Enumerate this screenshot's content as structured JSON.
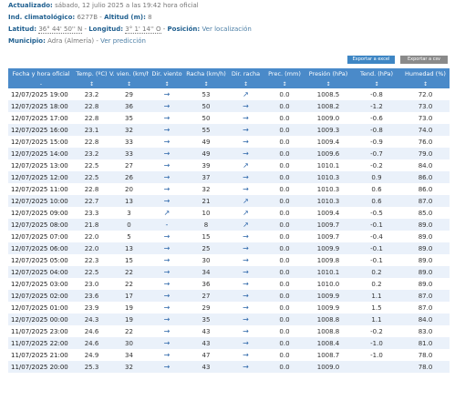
{
  "header": {
    "updated_label": "Actualizado:",
    "updated_value": "sábado, 12 julio 2025 a las 19:42 hora oficial",
    "station_label": "Ind. climatológico:",
    "station_value": "6277B",
    "altitude_label": "Altitud (m):",
    "altitude_value": "8",
    "lat_label": "Latitud:",
    "lat_value": "36° 44' 50'' N",
    "lon_label": "Longitud:",
    "lon_value": "3° 1' 14'' O",
    "position_label": "Posición:",
    "position_link": "Ver localización",
    "municipality_label": "Municipio:",
    "municipality_value": "Adra (Almería)",
    "prediction_link": "Ver predicción"
  },
  "buttons": {
    "excel": "Exportar a excel",
    "csv": "Exportar a csv"
  },
  "table": {
    "headers": [
      "Fecha y hora oficial",
      "Temp. (ºC)",
      "V. vien. (km/h)",
      "Dir. viento",
      "Racha (km/h)",
      "Dir. racha",
      "Prec. (mm)",
      "Presión (hPa)",
      "Tend. (hPa)",
      "Humedad (%)"
    ],
    "units": [
      "-",
      "↕",
      "↕",
      "↕",
      "↕",
      "↕",
      "↕",
      "↕",
      "↕",
      "↕"
    ],
    "rows": [
      {
        "date": "12/07/2025 19:00",
        "temp": "23.2",
        "wind": "29",
        "dir": "→",
        "gust": "53",
        "gdir": "↗",
        "prec": "0.0",
        "pres": "1008.5",
        "tend": "-0.8",
        "hum": "72.0"
      },
      {
        "date": "12/07/2025 18:00",
        "temp": "22.8",
        "wind": "36",
        "dir": "→",
        "gust": "50",
        "gdir": "→",
        "prec": "0.0",
        "pres": "1008.2",
        "tend": "-1.2",
        "hum": "73.0"
      },
      {
        "date": "12/07/2025 17:00",
        "temp": "22.8",
        "wind": "35",
        "dir": "→",
        "gust": "50",
        "gdir": "→",
        "prec": "0.0",
        "pres": "1009.0",
        "tend": "-0.6",
        "hum": "73.0"
      },
      {
        "date": "12/07/2025 16:00",
        "temp": "23.1",
        "wind": "32",
        "dir": "→",
        "gust": "55",
        "gdir": "→",
        "prec": "0.0",
        "pres": "1009.3",
        "tend": "-0.8",
        "hum": "74.0"
      },
      {
        "date": "12/07/2025 15:00",
        "temp": "22.8",
        "wind": "33",
        "dir": "→",
        "gust": "49",
        "gdir": "→",
        "prec": "0.0",
        "pres": "1009.4",
        "tend": "-0.9",
        "hum": "76.0"
      },
      {
        "date": "12/07/2025 14:00",
        "temp": "23.2",
        "wind": "33",
        "dir": "→",
        "gust": "49",
        "gdir": "→",
        "prec": "0.0",
        "pres": "1009.6",
        "tend": "-0.7",
        "hum": "79.0"
      },
      {
        "date": "12/07/2025 13:00",
        "temp": "22.5",
        "wind": "27",
        "dir": "→",
        "gust": "39",
        "gdir": "↗",
        "prec": "0.0",
        "pres": "1010.1",
        "tend": "-0.2",
        "hum": "84.0"
      },
      {
        "date": "12/07/2025 12:00",
        "temp": "22.5",
        "wind": "26",
        "dir": "→",
        "gust": "37",
        "gdir": "→",
        "prec": "0.0",
        "pres": "1010.3",
        "tend": "0.9",
        "hum": "86.0"
      },
      {
        "date": "12/07/2025 11:00",
        "temp": "22.8",
        "wind": "20",
        "dir": "→",
        "gust": "32",
        "gdir": "→",
        "prec": "0.0",
        "pres": "1010.3",
        "tend": "0.6",
        "hum": "86.0"
      },
      {
        "date": "12/07/2025 10:00",
        "temp": "22.7",
        "wind": "13",
        "dir": "→",
        "gust": "21",
        "gdir": "↗",
        "prec": "0.0",
        "pres": "1010.3",
        "tend": "0.6",
        "hum": "87.0"
      },
      {
        "date": "12/07/2025 09:00",
        "temp": "23.3",
        "wind": "3",
        "dir": "↗",
        "gust": "10",
        "gdir": "↗",
        "prec": "0.0",
        "pres": "1009.4",
        "tend": "-0.5",
        "hum": "85.0"
      },
      {
        "date": "12/07/2025 08:00",
        "temp": "21.8",
        "wind": "0",
        "dir": "-",
        "gust": "8",
        "gdir": "↗",
        "prec": "0.0",
        "pres": "1009.7",
        "tend": "-0.1",
        "hum": "89.0"
      },
      {
        "date": "12/07/2025 07:00",
        "temp": "22.0",
        "wind": "5",
        "dir": "→",
        "gust": "15",
        "gdir": "→",
        "prec": "0.0",
        "pres": "1009.7",
        "tend": "-0.4",
        "hum": "89.0"
      },
      {
        "date": "12/07/2025 06:00",
        "temp": "22.0",
        "wind": "13",
        "dir": "→",
        "gust": "25",
        "gdir": "→",
        "prec": "0.0",
        "pres": "1009.9",
        "tend": "-0.1",
        "hum": "89.0"
      },
      {
        "date": "12/07/2025 05:00",
        "temp": "22.3",
        "wind": "15",
        "dir": "→",
        "gust": "30",
        "gdir": "→",
        "prec": "0.0",
        "pres": "1009.8",
        "tend": "-0.1",
        "hum": "89.0"
      },
      {
        "date": "12/07/2025 04:00",
        "temp": "22.5",
        "wind": "22",
        "dir": "→",
        "gust": "34",
        "gdir": "→",
        "prec": "0.0",
        "pres": "1010.1",
        "tend": "0.2",
        "hum": "89.0"
      },
      {
        "date": "12/07/2025 03:00",
        "temp": "23.0",
        "wind": "22",
        "dir": "→",
        "gust": "36",
        "gdir": "→",
        "prec": "0.0",
        "pres": "1010.0",
        "tend": "0.2",
        "hum": "89.0"
      },
      {
        "date": "12/07/2025 02:00",
        "temp": "23.6",
        "wind": "17",
        "dir": "→",
        "gust": "27",
        "gdir": "→",
        "prec": "0.0",
        "pres": "1009.9",
        "tend": "1.1",
        "hum": "87.0"
      },
      {
        "date": "12/07/2025 01:00",
        "temp": "23.9",
        "wind": "19",
        "dir": "→",
        "gust": "29",
        "gdir": "→",
        "prec": "0.0",
        "pres": "1009.9",
        "tend": "1.5",
        "hum": "87.0"
      },
      {
        "date": "12/07/2025 00:00",
        "temp": "24.3",
        "wind": "19",
        "dir": "→",
        "gust": "35",
        "gdir": "→",
        "prec": "0.0",
        "pres": "1008.8",
        "tend": "1.1",
        "hum": "84.0"
      },
      {
        "date": "11/07/2025 23:00",
        "temp": "24.6",
        "wind": "22",
        "dir": "→",
        "gust": "43",
        "gdir": "→",
        "prec": "0.0",
        "pres": "1008.8",
        "tend": "-0.2",
        "hum": "83.0"
      },
      {
        "date": "11/07/2025 22:00",
        "temp": "24.6",
        "wind": "30",
        "dir": "→",
        "gust": "43",
        "gdir": "→",
        "prec": "0.0",
        "pres": "1008.4",
        "tend": "-1.0",
        "hum": "81.0"
      },
      {
        "date": "11/07/2025 21:00",
        "temp": "24.9",
        "wind": "34",
        "dir": "→",
        "gust": "47",
        "gdir": "→",
        "prec": "0.0",
        "pres": "1008.7",
        "tend": "-1.0",
        "hum": "78.0"
      },
      {
        "date": "11/07/2025 20:00",
        "temp": "25.3",
        "wind": "32",
        "dir": "→",
        "gust": "43",
        "gdir": "→",
        "prec": "0.0",
        "pres": "1009.0",
        "tend": "",
        "hum": "78.0"
      }
    ]
  },
  "colors": {
    "header_bg": "#4a8ac9",
    "row_alt": "#eaf1fa",
    "label": "#1f5f8f",
    "arrow": "#2a64a8"
  }
}
